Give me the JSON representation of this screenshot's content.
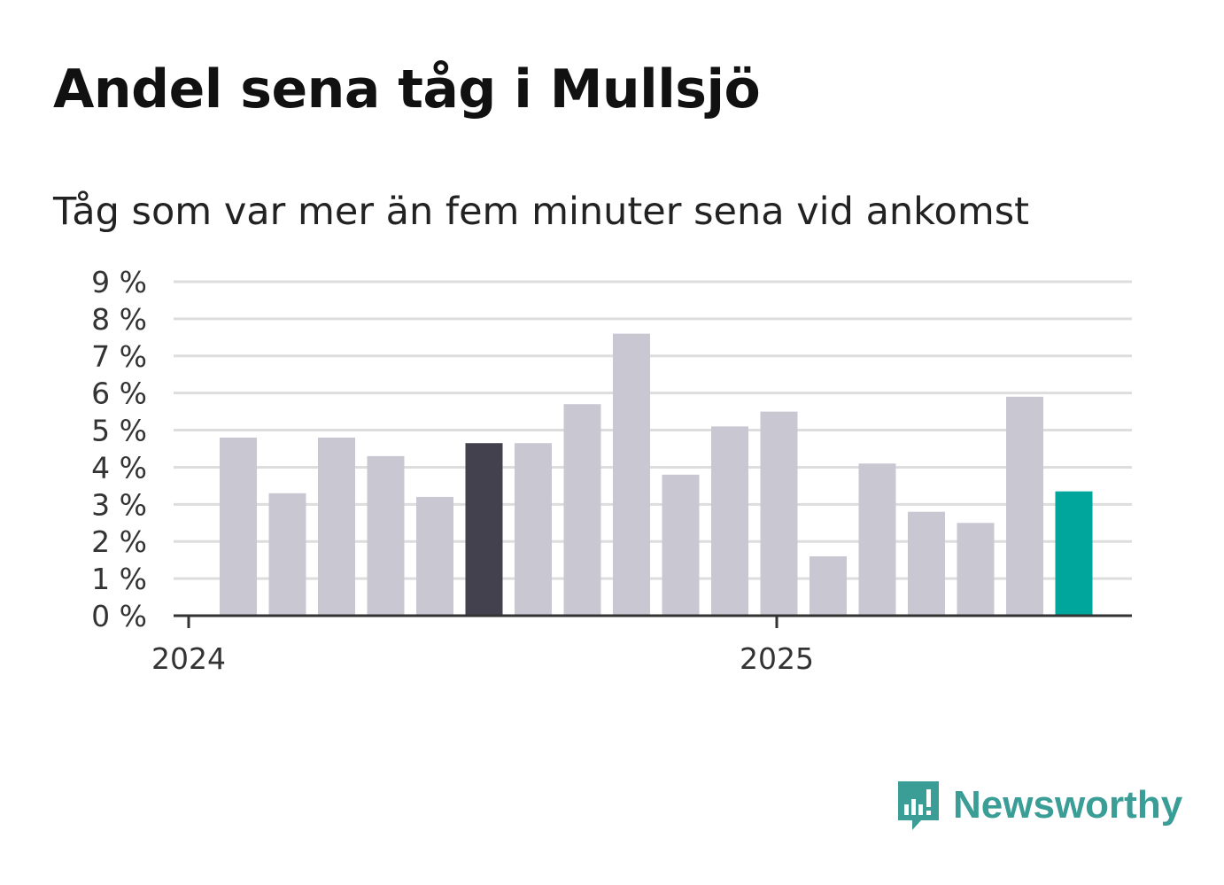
{
  "title": "Andel sena tåg i Mullsjö",
  "subtitle": "Tåg som var mer än fem minuter sena vid ankomst",
  "brand": {
    "name": "Newsworthy",
    "icon": "newsworthy-logo-icon"
  },
  "colors": {
    "bar_default": "#c8c7d2",
    "bar_highlight_dark": "#43414e",
    "bar_highlight_latest": "#00a59b",
    "grid": "#dddddd",
    "axis": "#333333",
    "brand": "#3a9d96"
  },
  "chart_data": {
    "type": "bar",
    "x_ticks": [
      "2024",
      "2025"
    ],
    "ylim": [
      0,
      9
    ],
    "y_ticks": [
      "0 %",
      "1 %",
      "2 %",
      "3 %",
      "4 %",
      "5 %",
      "6 %",
      "7 %",
      "8 %",
      "9 %"
    ],
    "grid": true,
    "categories": [
      "2024-01",
      "2024-02",
      "2024-03",
      "2024-04",
      "2024-05",
      "2024-06",
      "2024-07",
      "2024-08",
      "2024-09",
      "2024-10",
      "2024-11",
      "2024-12",
      "2025-01",
      "2025-02",
      "2025-03",
      "2025-04",
      "2025-05",
      "2025-06"
    ],
    "values": [
      4.8,
      3.3,
      4.8,
      4.3,
      3.2,
      4.65,
      4.65,
      5.7,
      7.6,
      3.8,
      5.1,
      5.5,
      1.6,
      4.1,
      2.8,
      2.5,
      5.9,
      3.35
    ],
    "highlight_dark_index": 5,
    "highlight_latest_index": 17
  }
}
